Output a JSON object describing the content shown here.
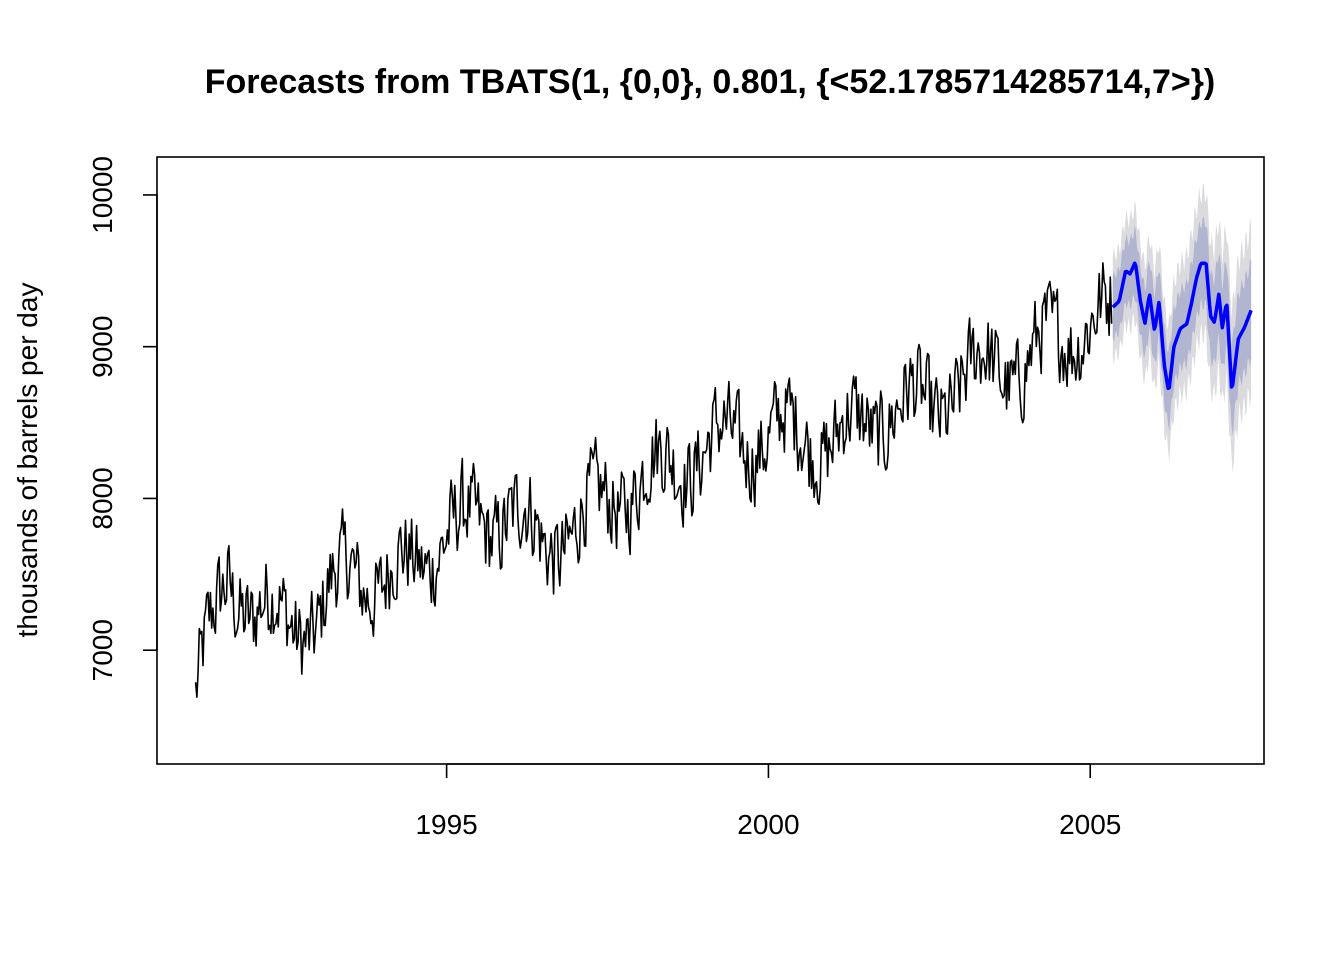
{
  "chart_data": {
    "type": "line",
    "title": "Forecasts from TBATS(1, {0,0}, 0.801, {<52.1785714285714,7>})",
    "xlabel": "",
    "ylabel": "thousands of barrels per day",
    "xlim": [
      1990.5,
      2007.7
    ],
    "ylim": [
      6250,
      10250
    ],
    "x_ticks": [
      1995,
      2000,
      2005
    ],
    "y_ticks": [
      7000,
      8000,
      9000,
      10000
    ],
    "grid": false,
    "legend": "none",
    "colors": {
      "history": "#000000",
      "forecast": "#0000ff",
      "band80": "#b1b5cf",
      "band95": "#dbdbdf",
      "frame": "#000000"
    },
    "series": [
      {
        "role": "observed",
        "style": "weekly series (approximate digitized trend)",
        "x_start": 1991.1,
        "x_step": 0.01918,
        "anchors": [
          [
            1991.1,
            6620
          ],
          [
            1991.3,
            7050
          ],
          [
            1991.6,
            7550
          ],
          [
            1992.0,
            7200
          ],
          [
            1992.5,
            7250
          ],
          [
            1993.0,
            7150
          ],
          [
            1993.5,
            7600
          ],
          [
            1994.0,
            7400
          ],
          [
            1994.5,
            7600
          ],
          [
            1995.0,
            7750
          ],
          [
            1995.5,
            7850
          ],
          [
            1996.0,
            7900
          ],
          [
            1996.5,
            7700
          ],
          [
            1997.0,
            7800
          ],
          [
            1997.5,
            8000
          ],
          [
            1998.0,
            8100
          ],
          [
            1998.5,
            8250
          ],
          [
            1999.0,
            8300
          ],
          [
            1999.5,
            8400
          ],
          [
            2000.0,
            8400
          ],
          [
            2000.5,
            8450
          ],
          [
            2001.0,
            8350
          ],
          [
            2001.5,
            8500
          ],
          [
            2002.0,
            8600
          ],
          [
            2002.5,
            8600
          ],
          [
            2003.0,
            8750
          ],
          [
            2003.5,
            8900
          ],
          [
            2004.0,
            8850
          ],
          [
            2004.5,
            9100
          ],
          [
            2005.0,
            9150
          ],
          [
            2005.35,
            9200
          ]
        ],
        "noise_amplitude": 260,
        "seasonal_amplitude": 150,
        "min": 6320,
        "max": 9670
      },
      {
        "role": "forecast",
        "anchors": [
          [
            2005.35,
            9260
          ],
          [
            2005.45,
            9300
          ],
          [
            2005.55,
            9500
          ],
          [
            2005.62,
            9480
          ],
          [
            2005.7,
            9560
          ],
          [
            2005.78,
            9300
          ],
          [
            2005.85,
            9150
          ],
          [
            2005.92,
            9350
          ],
          [
            2006.0,
            9100
          ],
          [
            2006.07,
            9300
          ],
          [
            2006.15,
            8880
          ],
          [
            2006.22,
            8700
          ],
          [
            2006.3,
            9000
          ],
          [
            2006.4,
            9120
          ],
          [
            2006.5,
            9150
          ],
          [
            2006.57,
            9280
          ],
          [
            2006.65,
            9450
          ],
          [
            2006.72,
            9550
          ],
          [
            2006.8,
            9550
          ],
          [
            2006.87,
            9200
          ],
          [
            2006.93,
            9160
          ],
          [
            2007.0,
            9350
          ],
          [
            2007.05,
            9120
          ],
          [
            2007.12,
            9300
          ],
          [
            2007.2,
            8700
          ],
          [
            2007.3,
            9050
          ],
          [
            2007.4,
            9130
          ],
          [
            2007.5,
            9240
          ]
        ],
        "band80_halfwidth": [
          200,
          310
        ],
        "band95_halfwidth": [
          330,
          540
        ]
      }
    ]
  }
}
